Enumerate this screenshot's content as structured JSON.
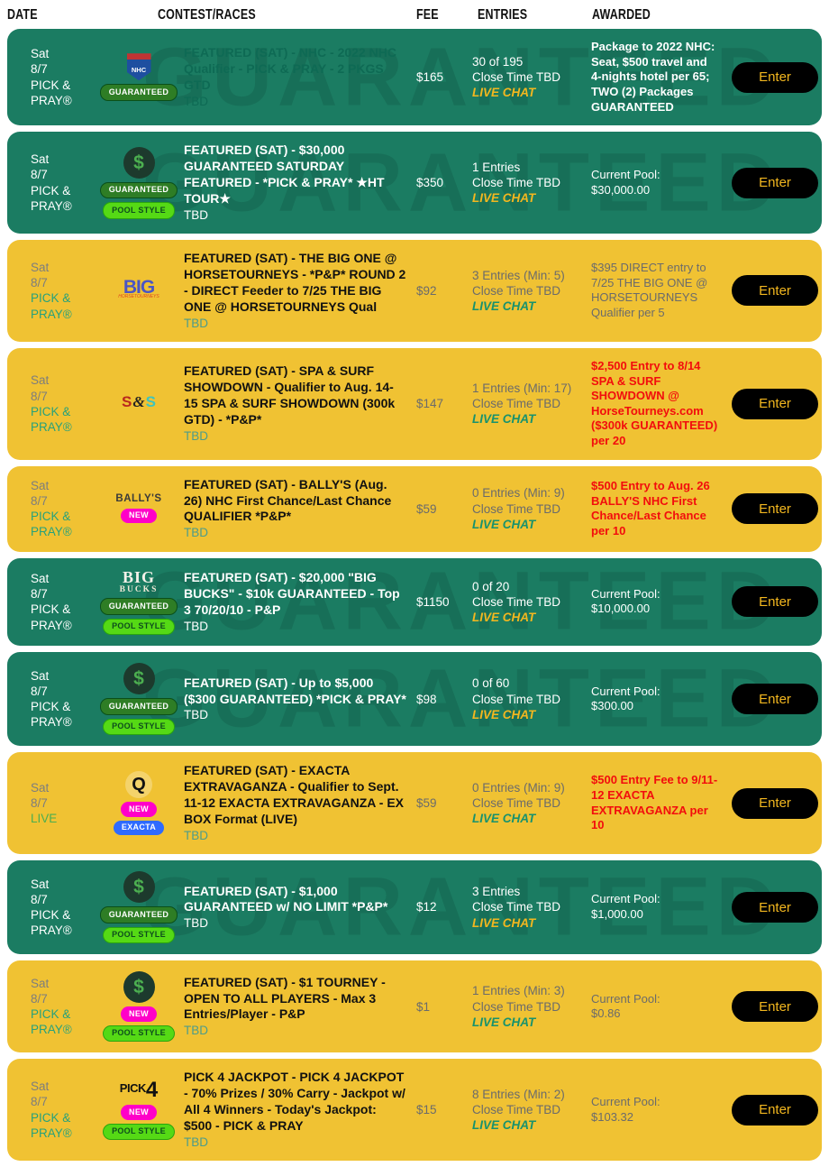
{
  "header": {
    "columns": [
      "DATE",
      "CONTEST/RACES",
      "FEE",
      "ENTRIES",
      "AWARDED"
    ]
  },
  "enter_label": "Enter",
  "watermark": "GUARANTEED",
  "colors": {
    "row_green": "#1b7c62",
    "row_yellow": "#f0c233",
    "enter_button_bg": "#000000",
    "enter_button_text": "#f3b71f",
    "live_chat_on_green": "#f3b71f",
    "live_chat_on_yellow": "#18926d",
    "awarded_red": "#f20d0d",
    "badge_new": "#ff00c8",
    "badge_exacta": "#2f6bff",
    "badge_pool_style": "#55d915",
    "badge_guaranteed": "#2e7d25"
  },
  "badge_styles": {
    "GUARANTEED": "badge-guaranteed",
    "POOL STYLE": "badge-pool",
    "NEW": "badge-new",
    "EXACTA": "badge-exacta"
  },
  "logos": {
    "nhc": {
      "parts": [
        {
          "t": "NHC",
          "c": "nhc-shield"
        }
      ]
    },
    "dollar": {
      "parts": [
        {
          "t": "$",
          "c": "dollar-circle"
        }
      ]
    },
    "big": {
      "parts": [
        {
          "t": "BIG",
          "c": "big-word"
        },
        {
          "t": "HORSETOURNEYS",
          "c": "big-sub"
        }
      ]
    },
    "sns": {
      "parts": [
        {
          "t": "S",
          "c": "sns-red"
        },
        {
          "t": "&",
          "c": "sns-amp"
        },
        {
          "t": "S",
          "c": "sns-teal"
        }
      ]
    },
    "ballys": {
      "parts": [
        {
          "t": "BALLY'S",
          "c": "ballys-word"
        }
      ]
    },
    "bigbucks": {
      "parts": [
        {
          "t": "BIG",
          "c": "bucks-top"
        },
        {
          "t": "BUCKS",
          "c": "bucks-bottom"
        }
      ]
    },
    "q": {
      "parts": [
        {
          "t": "Q",
          "c": "q-letter"
        }
      ]
    },
    "pick4": {
      "parts": [
        {
          "t": "PICK",
          "c": "pick-word"
        },
        {
          "t": "4",
          "c": "pick-num"
        }
      ]
    }
  },
  "rows": [
    {
      "theme": "green",
      "date_line1": "Sat",
      "date_line2": "8/7",
      "date_line3": "PICK & PRAY®",
      "logo": "nhc",
      "badges": [
        "GUARANTEED"
      ],
      "title": "FEATURED (SAT) - NHC - 2022 NHC Qualifier - PICK & PRAY - 2 PKGS GTD",
      "title_style": "t-dark",
      "sub": "TBD",
      "fee": "$165",
      "entries_line1": "30 of 195",
      "entries_line2": "Close Time TBD",
      "live_chat": "LIVE CHAT",
      "awarded": "Package to 2022 NHC: Seat, $500 travel and 4-nights hotel per 65; TWO (2) Packages GUARANTEED",
      "awarded_style": "a-white-bold"
    },
    {
      "theme": "green",
      "date_line1": "Sat",
      "date_line2": "8/7",
      "date_line3": "PICK & PRAY®",
      "logo": "dollar",
      "badges": [
        "GUARANTEED",
        "POOL STYLE"
      ],
      "title": "FEATURED (SAT) - $30,000 GUARANTEED SATURDAY FEATURED - *PICK & PRAY* ★HT TOUR★",
      "title_style": "t-white",
      "sub": "TBD",
      "fee": "$350",
      "entries_line1": "1 Entries",
      "entries_line2": "Close Time TBD",
      "live_chat": "LIVE CHAT",
      "awarded": "Current Pool:\n$30,000.00",
      "awarded_style": "a-white"
    },
    {
      "theme": "yellow",
      "date_line1": "Sat",
      "date_line2": "8/7",
      "date_line3": "PICK & PRAY®",
      "logo": "big",
      "badges": [],
      "title": "FEATURED (SAT) - THE BIG ONE @ HORSETOURNEYS - *P&P* ROUND 2 - DIRECT Feeder to 7/25 THE BIG ONE @ HORSETOURNEYS Qual",
      "title_style": "t-black",
      "sub": "TBD",
      "fee": "$92",
      "entries_line1": "3 Entries (Min: 5)",
      "entries_line2": "Close Time TBD",
      "live_chat": "LIVE CHAT",
      "awarded": "$395 DIRECT entry to 7/25 THE BIG ONE @ HORSETOURNEYS Qualifier per 5",
      "awarded_style": "a-gray"
    },
    {
      "theme": "yellow",
      "date_line1": "Sat",
      "date_line2": "8/7",
      "date_line3": "PICK & PRAY®",
      "logo": "sns",
      "badges": [],
      "title": "FEATURED (SAT) - SPA & SURF SHOWDOWN - Qualifier to Aug. 14-15 SPA & SURF SHOWDOWN (300k GTD) - *P&P*",
      "title_style": "t-black",
      "sub": "TBD",
      "fee": "$147",
      "entries_line1": "1 Entries (Min: 17)",
      "entries_line2": "Close Time TBD",
      "live_chat": "LIVE CHAT",
      "awarded": "$2,500 Entry to 8/14 SPA & SURF SHOWDOWN @ HorseTourneys.com ($300k GUARANTEED) per 20",
      "awarded_style": "a-red"
    },
    {
      "theme": "yellow",
      "date_line1": "Sat",
      "date_line2": "8/7",
      "date_line3": "PICK & PRAY®",
      "logo": "ballys",
      "badges": [
        "NEW"
      ],
      "title": "FEATURED (SAT) - BALLY'S (Aug. 26) NHC First Chance/Last Chance QUALIFIER *P&P*",
      "title_style": "t-black",
      "sub": "TBD",
      "fee": "$59",
      "entries_line1": "0 Entries (Min: 9)",
      "entries_line2": "Close Time TBD",
      "live_chat": "LIVE CHAT",
      "awarded": "$500 Entry to Aug. 26 BALLY'S NHC First Chance/Last Chance per 10",
      "awarded_style": "a-red"
    },
    {
      "theme": "green",
      "date_line1": "Sat",
      "date_line2": "8/7",
      "date_line3": "PICK & PRAY®",
      "logo": "bigbucks",
      "badges": [
        "GUARANTEED",
        "POOL STYLE"
      ],
      "title": "FEATURED (SAT) - $20,000 \"BIG BUCKS\" - $10k GUARANTEED - Top 3 70/20/10 - P&P",
      "title_style": "t-white",
      "sub": "TBD",
      "fee": "$1150",
      "entries_line1": "0 of 20",
      "entries_line2": "Close Time TBD",
      "live_chat": "LIVE CHAT",
      "awarded": "Current Pool:\n$10,000.00",
      "awarded_style": "a-white"
    },
    {
      "theme": "green",
      "date_line1": "Sat",
      "date_line2": "8/7",
      "date_line3": "PICK & PRAY®",
      "logo": "dollar",
      "badges": [
        "GUARANTEED",
        "POOL STYLE"
      ],
      "title": "FEATURED (SAT) - Up to $5,000 ($300 GUARANTEED) *PICK & PRAY*",
      "title_style": "t-white",
      "sub": "TBD",
      "fee": "$98",
      "entries_line1": "0 of 60",
      "entries_line2": "Close Time TBD",
      "live_chat": "LIVE CHAT",
      "awarded": "Current Pool:\n$300.00",
      "awarded_style": "a-white"
    },
    {
      "theme": "yellow",
      "date_line1": "Sat",
      "date_line2": "8/7",
      "date_line3": "LIVE",
      "date_line3_style": "live-green",
      "logo": "q",
      "badges": [
        "NEW",
        "EXACTA"
      ],
      "title": "FEATURED (SAT) - EXACTA EXTRAVAGANZA - Qualifier to Sept. 11-12 EXACTA EXTRAVAGANZA - EX BOX Format (LIVE)",
      "title_style": "t-black",
      "sub": "TBD",
      "fee": "$59",
      "entries_line1": "0 Entries (Min: 9)",
      "entries_line2": "Close Time TBD",
      "live_chat": "LIVE CHAT",
      "awarded": "$500 Entry Fee to 9/11-12 EXACTA EXTRAVAGANZA per 10",
      "awarded_style": "a-red"
    },
    {
      "theme": "green",
      "date_line1": "Sat",
      "date_line2": "8/7",
      "date_line3": "PICK & PRAY®",
      "logo": "dollar",
      "badges": [
        "GUARANTEED",
        "POOL STYLE"
      ],
      "title": "FEATURED (SAT) - $1,000 GUARANTEED w/ NO LIMIT *P&P*",
      "title_style": "t-white",
      "sub": "TBD",
      "fee": "$12",
      "entries_line1": "3 Entries",
      "entries_line2": "Close Time TBD",
      "live_chat": "LIVE CHAT",
      "awarded": "Current Pool:\n$1,000.00",
      "awarded_style": "a-white"
    },
    {
      "theme": "yellow",
      "date_line1": "Sat",
      "date_line2": "8/7",
      "date_line3": "PICK & PRAY®",
      "logo": "dollar",
      "badges": [
        "NEW",
        "POOL STYLE"
      ],
      "title": "FEATURED (SAT) - $1 TOURNEY - OPEN TO ALL PLAYERS - Max 3 Entries/Player - P&P",
      "title_style": "t-black",
      "sub": "TBD",
      "fee": "$1",
      "entries_line1": "1 Entries (Min: 3)",
      "entries_line2": "Close Time TBD",
      "live_chat": "LIVE CHAT",
      "awarded": "Current Pool:\n$0.86",
      "awarded_style": "a-gray"
    },
    {
      "theme": "yellow",
      "date_line1": "Sat",
      "date_line2": "8/7",
      "date_line3": "PICK & PRAY®",
      "logo": "pick4",
      "badges": [
        "NEW",
        "POOL STYLE"
      ],
      "title": "PICK 4 JACKPOT - PICK 4 JACKPOT - 70% Prizes / 30% Carry - Jackpot w/ All 4 Winners - Today's Jackpot: $500 - PICK & PRAY",
      "title_style": "t-black",
      "sub": "TBD",
      "fee": "$15",
      "entries_line1": "8 Entries (Min: 2)",
      "entries_line2": "Close Time TBD",
      "live_chat": "LIVE CHAT",
      "awarded": "Current Pool:\n$103.32",
      "awarded_style": "a-gray"
    }
  ]
}
